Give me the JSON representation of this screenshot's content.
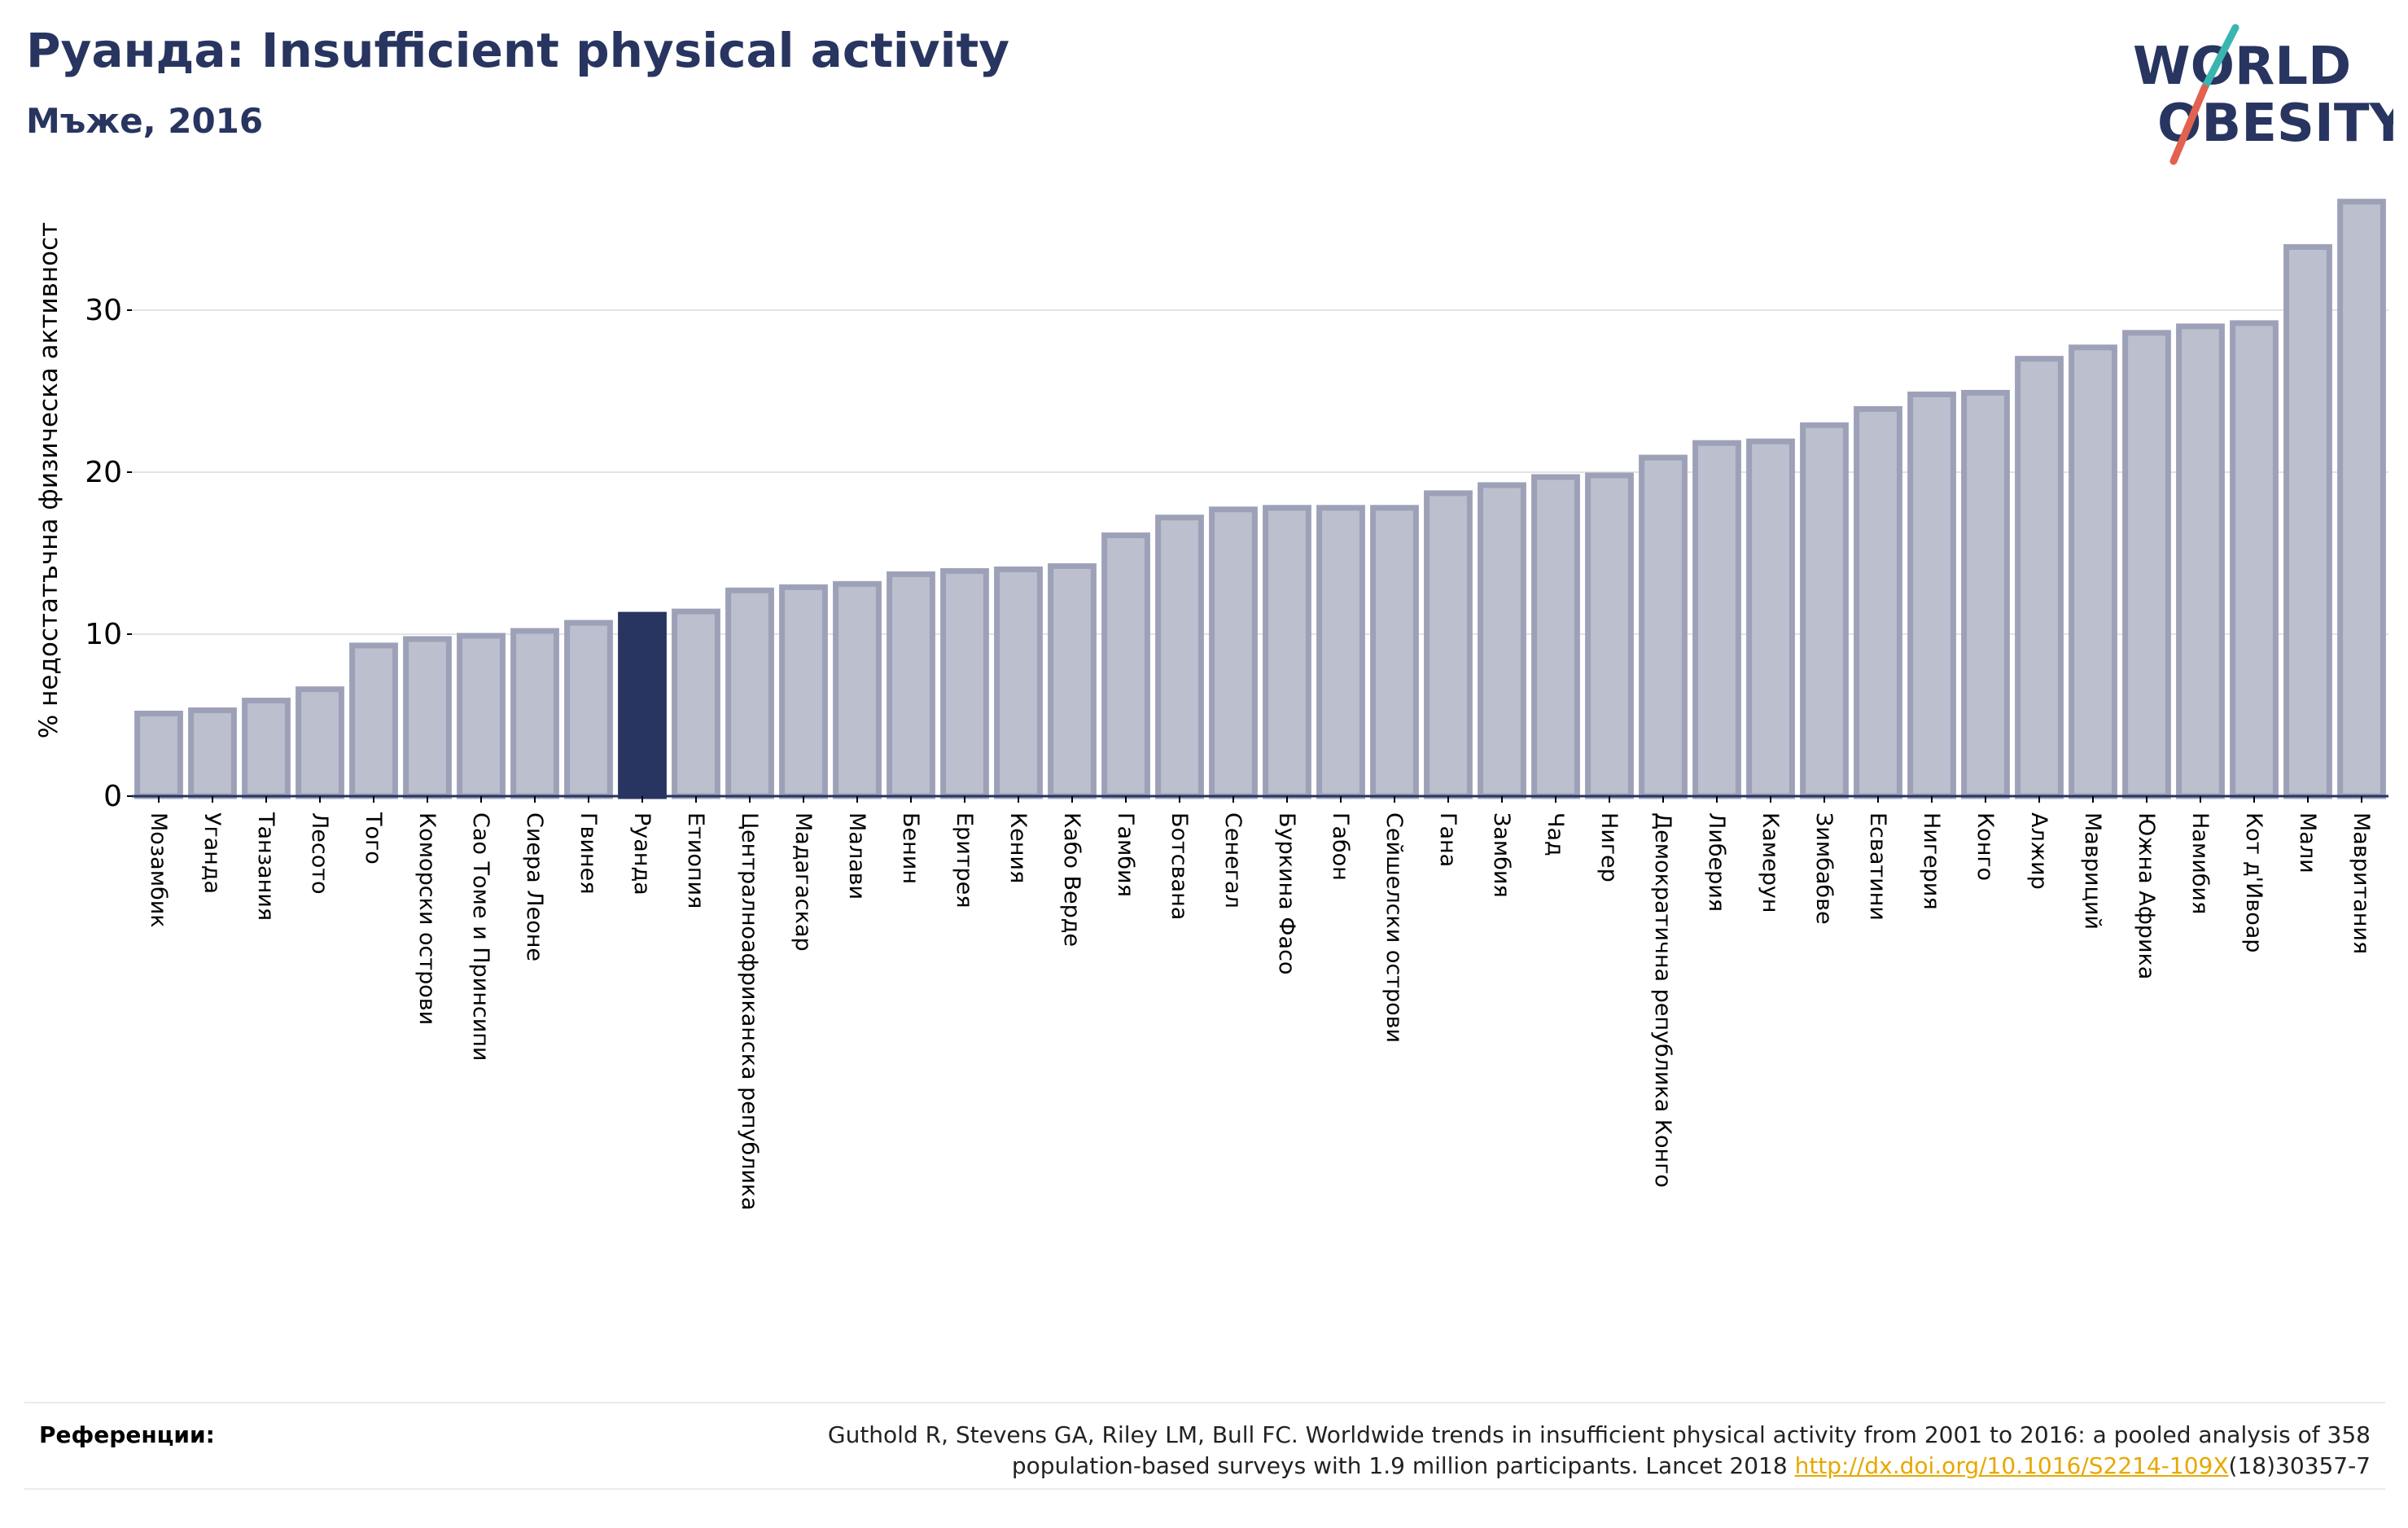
{
  "header": {
    "title": "Руанда: Insufficient physical activity",
    "subtitle": "Мъже, 2016"
  },
  "logo": {
    "line1": "WORLD",
    "line2": "OBESITY"
  },
  "colors": {
    "title": "#283560",
    "bar_fill": "#bcbfcd",
    "bar_stroke": "#9da1b8",
    "highlight": "#283560",
    "logo_teal": "#3ab5b0",
    "logo_red": "#e2614f",
    "link": "#e7a800"
  },
  "chart_data": {
    "type": "bar",
    "ylabel": "% недостатъчна физическа активност",
    "ylim": [
      0,
      37
    ],
    "yticks": [
      0,
      10,
      20,
      30
    ],
    "grid": true,
    "highlight": "Руанда",
    "categories": [
      "Мозамбик",
      "Уганда",
      "Танзания",
      "Лесото",
      "Того",
      "Коморски острови",
      "Сао Томе и Принсипи",
      "Сиера Леоне",
      "Гвинея",
      "Руанда",
      "Етиопия",
      "Централноафриканска република",
      "Мадагаскар",
      "Малави",
      "Бенин",
      "Еритрея",
      "Кения",
      "Кабо Верде",
      "Гамбия",
      "Ботсвана",
      "Сенегал",
      "Буркина Фасо",
      "Габон",
      "Сейшелски острови",
      "Гана",
      "Замбия",
      "Чад",
      "Нигер",
      "Демократична република Конго",
      "Либерия",
      "Камерун",
      "Зимбабве",
      "Есватини",
      "Нигерия",
      "Конго",
      "Алжир",
      "Мавриций",
      "Южна Африка",
      "Намибия",
      "Кот д'Ивоар",
      "Мали",
      "Мавритания"
    ],
    "values": [
      5.1,
      5.3,
      5.9,
      6.6,
      9.3,
      9.7,
      9.9,
      10.2,
      10.7,
      11.2,
      11.4,
      12.7,
      12.9,
      13.1,
      13.7,
      13.9,
      14.0,
      14.2,
      16.1,
      17.2,
      17.7,
      17.8,
      17.8,
      17.8,
      18.7,
      19.2,
      19.7,
      19.8,
      20.9,
      21.8,
      21.9,
      22.9,
      23.9,
      24.8,
      24.9,
      27.0,
      27.7,
      28.6,
      29.0,
      29.2,
      33.9,
      36.7
    ]
  },
  "references": {
    "label": "Референции:",
    "text_line1": "Guthold R, Stevens GA, Riley LM, Bull FC. Worldwide trends in insufficient physical activity from 2001 to 2016: a pooled analysis of 358",
    "text_line2": "population-based surveys with 1.9 million participants. Lancet 2018 ",
    "link": "http://dx.doi.org/10.1016/S2214-109X",
    "link_suffix": "(18)30357-7"
  }
}
